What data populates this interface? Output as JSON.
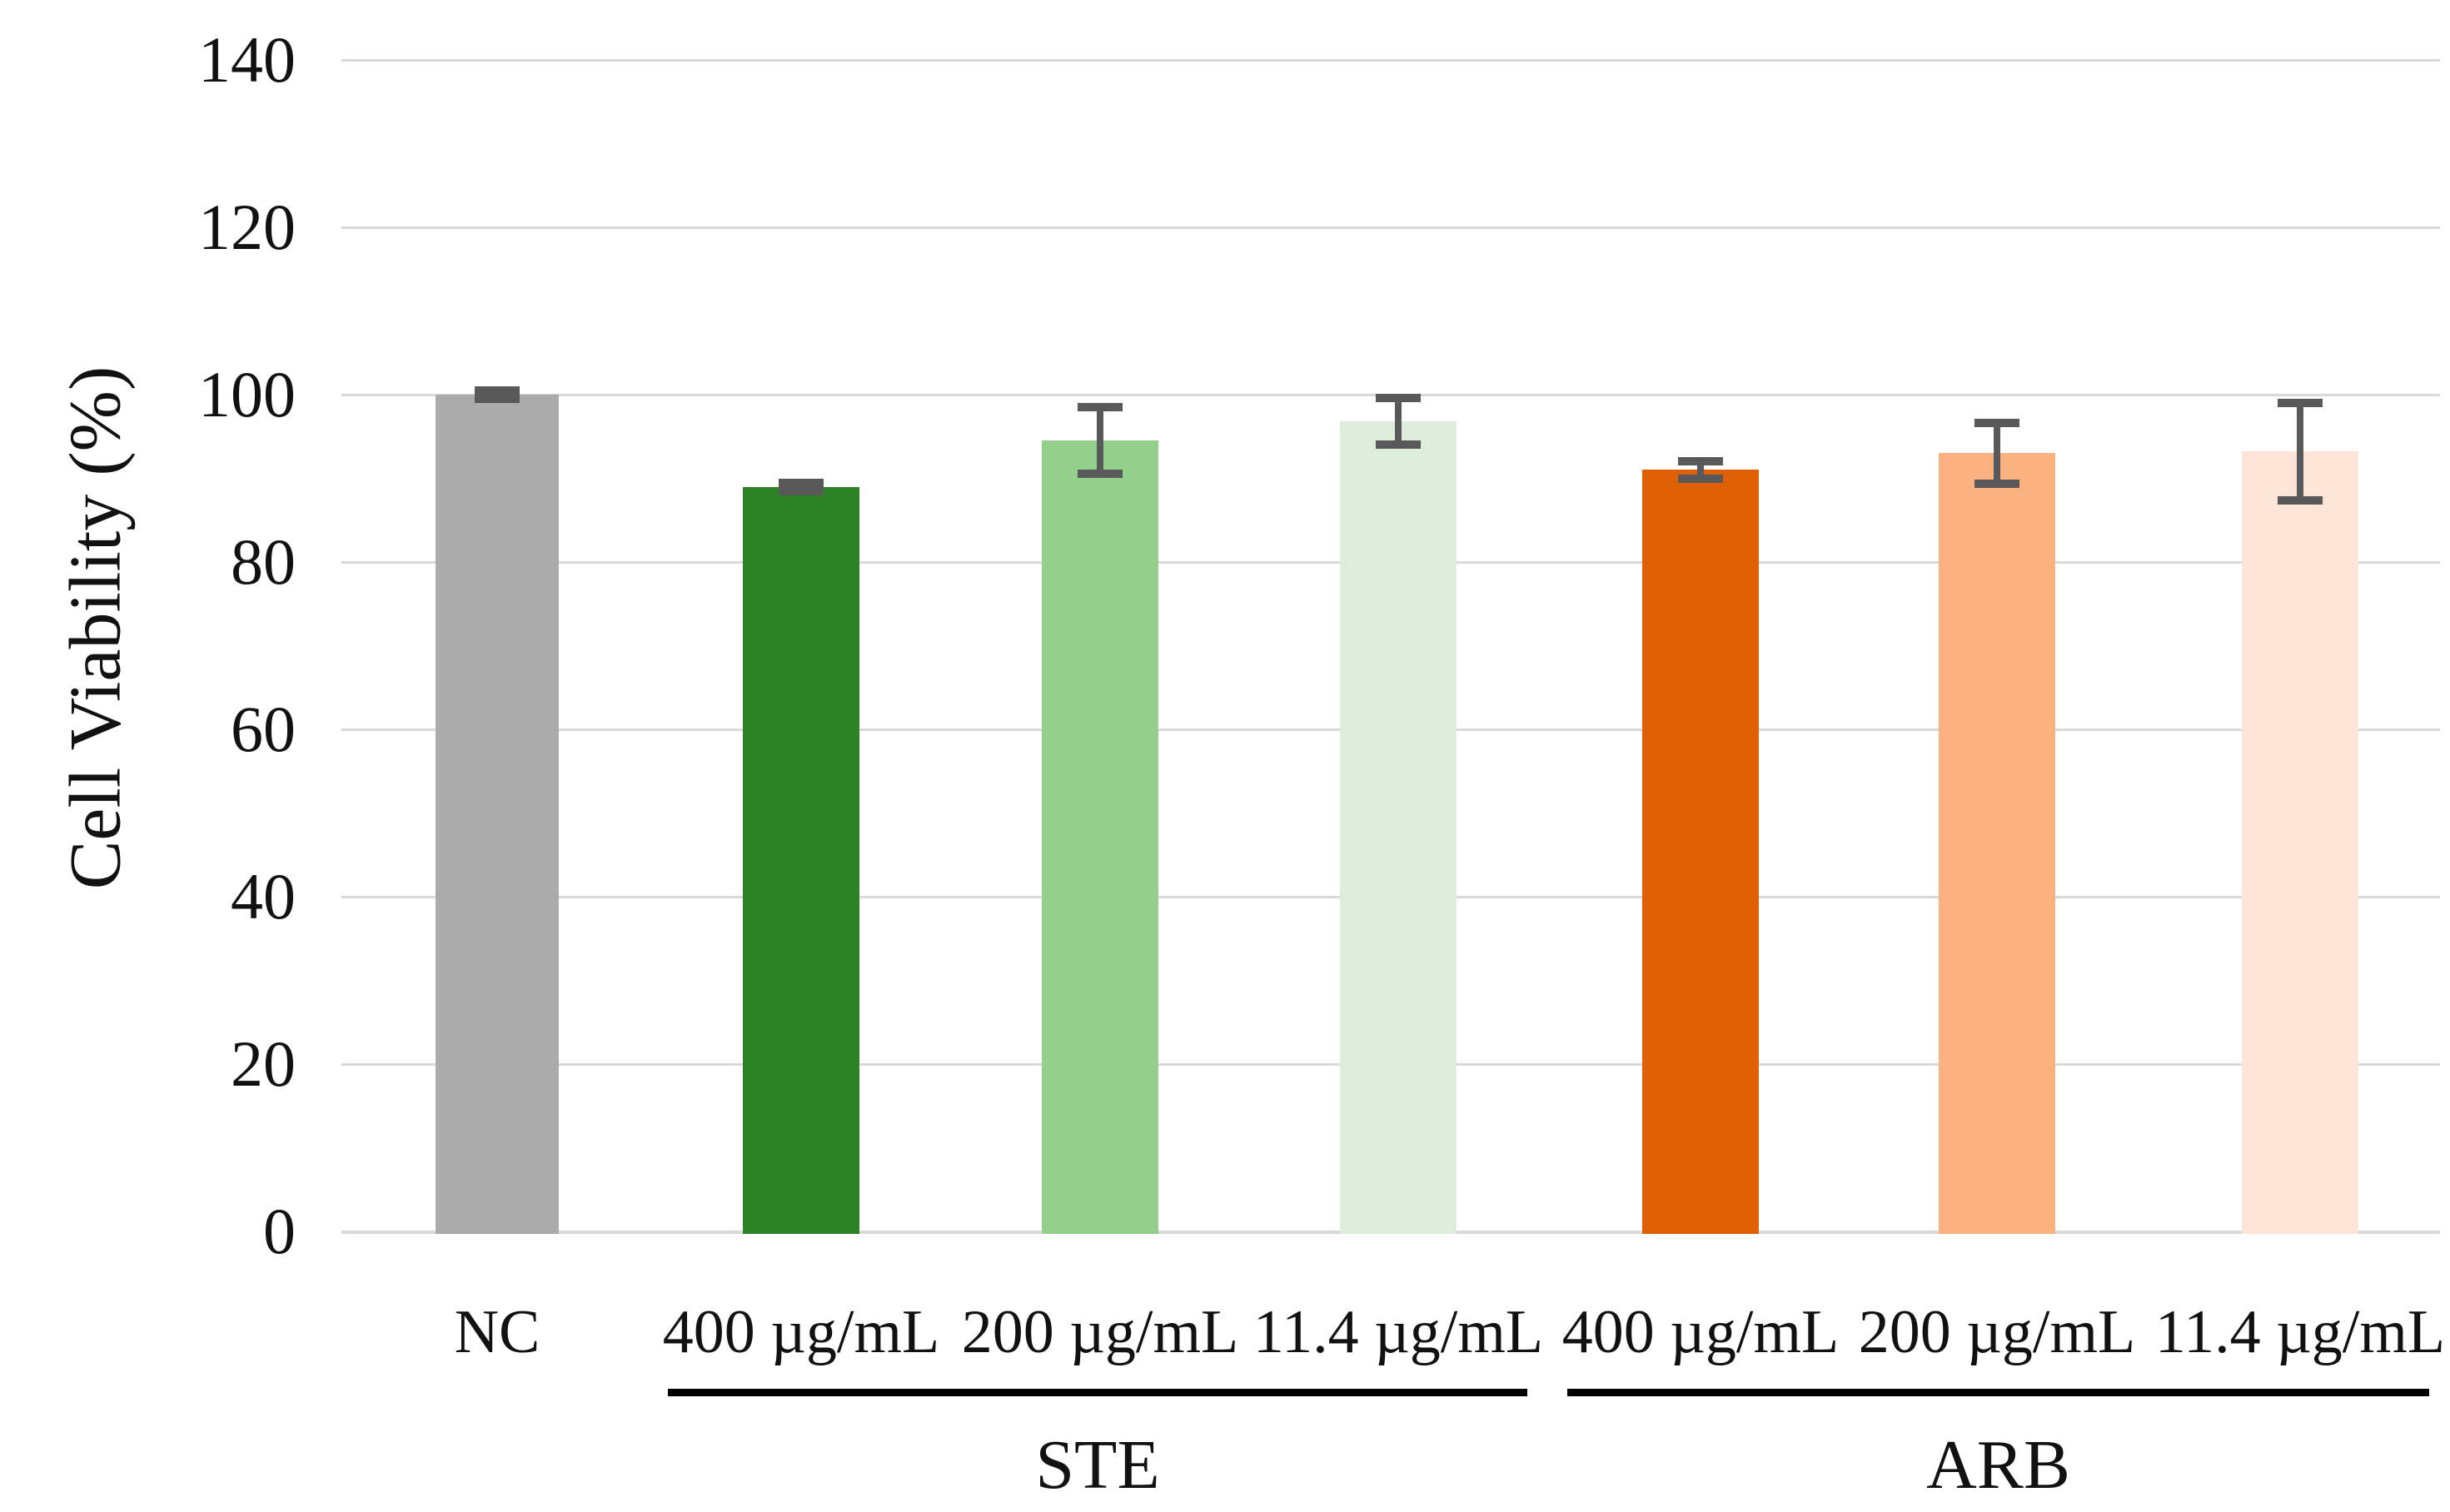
{
  "chart_data": {
    "type": "bar",
    "ylabel": "Cell Viability (%)",
    "ylim": [
      0,
      140
    ],
    "yticks": [
      0,
      20,
      40,
      60,
      80,
      100,
      120,
      140
    ],
    "grid": true,
    "legend": "none",
    "categories": [
      "NC",
      "400 µg/mL",
      "200 µg/mL",
      "11.4 µg/mL",
      "400 µg/mL",
      "200 µg/mL",
      "11.4 µg/mL"
    ],
    "values": [
      100,
      89,
      94.5,
      96.8,
      91,
      93,
      93.2
    ],
    "errors": [
      0.5,
      0.5,
      4.0,
      2.8,
      1.0,
      3.6,
      5.8
    ],
    "bar_colors": [
      "#ABABAB",
      "#2E8226",
      "#93D08B",
      "#DEEEDA",
      "#DF5F04",
      "#FCB180",
      "#FCE5D6"
    ],
    "error_bar_color": "#595959",
    "gridline_color": "#D9D9D9",
    "text_color": "#111111",
    "groups": [
      {
        "label": "STE",
        "start_index": 1,
        "end_index": 3
      },
      {
        "label": "ARB",
        "start_index": 4,
        "end_index": 6
      }
    ]
  }
}
